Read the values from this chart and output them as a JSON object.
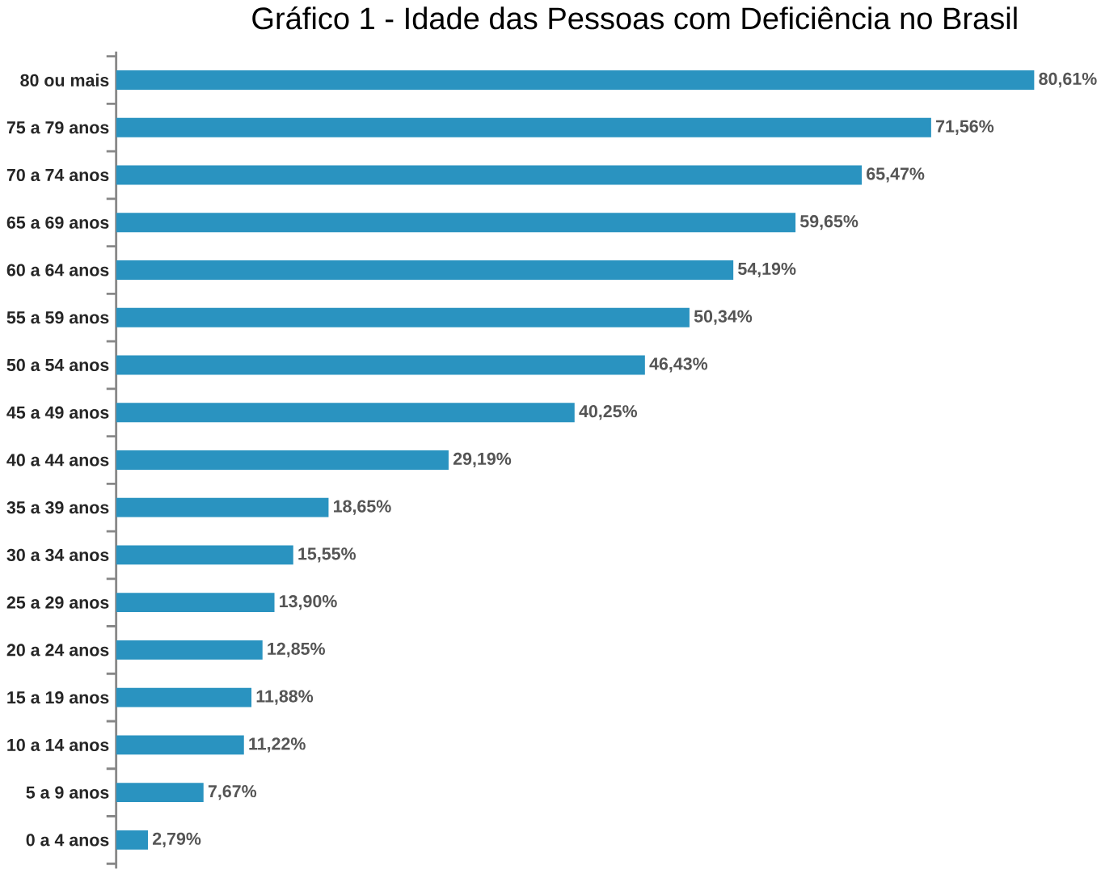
{
  "chart_data": {
    "type": "bar",
    "orientation": "horizontal",
    "title": "Gráfico 1 - Idade das Pessoas com Deficiência no Brasil",
    "categories": [
      "80 ou mais",
      "75 a 79 anos",
      "70 a 74 anos",
      "65 a 69 anos",
      "60 a 64 anos",
      "55 a 59 anos",
      "50 a 54 anos",
      "45 a 49 anos",
      "40 a 44 anos",
      "35 a 39 anos",
      "30 a 34 anos",
      "25 a 29 anos",
      "20 a 24 anos",
      "15 a 19 anos",
      "10 a 14 anos",
      "5 a 9 anos",
      "0 a 4 anos"
    ],
    "values": [
      80.61,
      71.56,
      65.47,
      59.65,
      54.19,
      50.34,
      46.43,
      40.25,
      29.19,
      18.65,
      15.55,
      13.9,
      12.85,
      11.88,
      11.22,
      7.67,
      2.79
    ],
    "value_labels": [
      "80,61%",
      "71,56%",
      "65,47%",
      "59,65%",
      "54,19%",
      "50,34%",
      "46,43%",
      "40,25%",
      "29,19%",
      "18,65%",
      "15,55%",
      "13,90%",
      "12,85%",
      "11,88%",
      "11,22%",
      "7,67%",
      "2,79%"
    ],
    "color": "#2a93c0"
  }
}
